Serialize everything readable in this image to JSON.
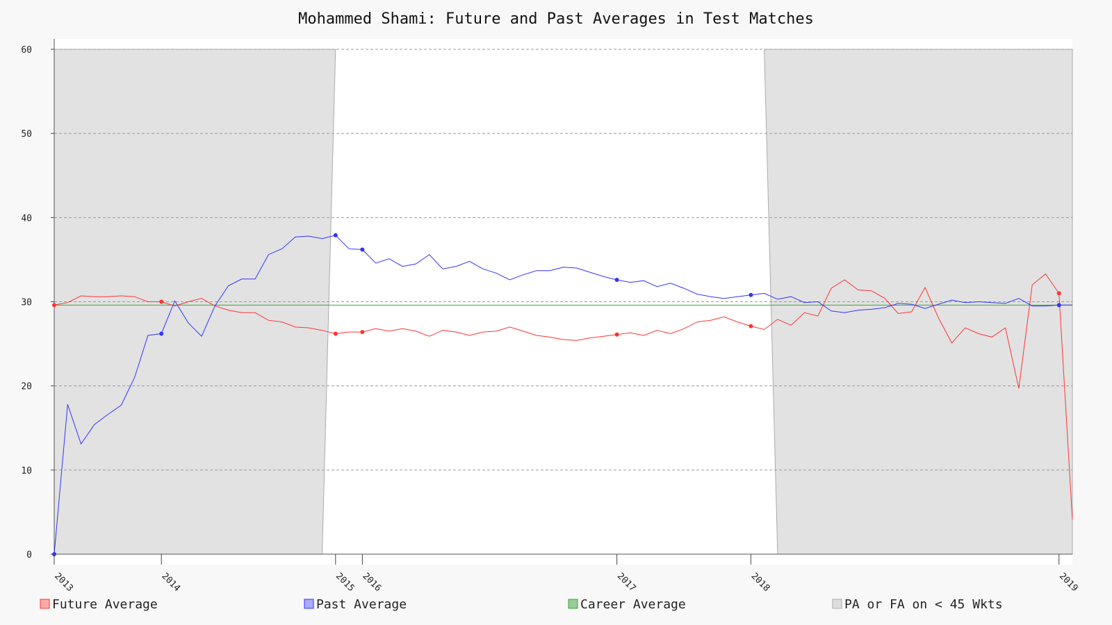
{
  "chart_data": {
    "type": "line",
    "title": "Mohammed Shami: Future and Past Averages in Test Matches",
    "xlabel": "",
    "ylabel": "",
    "ylim": [
      0,
      60
    ],
    "yticks": [
      0,
      10,
      20,
      30,
      40,
      50,
      60
    ],
    "grid": true,
    "legend_position": "bottom",
    "x_ticks": [
      {
        "label": "2013",
        "match": 0
      },
      {
        "label": "2014",
        "match": 8
      },
      {
        "label": "2015",
        "match": 21
      },
      {
        "label": "2016",
        "match": 23
      },
      {
        "label": "2017",
        "match": 42
      },
      {
        "label": "2018",
        "match": 52
      },
      {
        "label": "2019",
        "match": 75
      }
    ],
    "career_average": 29.6,
    "low_wicket_regions": [
      {
        "from": 0,
        "to_bottom": 20,
        "to_top": 21
      },
      {
        "from_bottom": 54,
        "from_top": 53,
        "to": 76
      }
    ],
    "series": [
      {
        "name": "Future Average",
        "color": "#ff3333",
        "marker_indices": [
          0,
          8,
          21,
          23,
          42,
          52,
          75
        ],
        "values": [
          29.6,
          29.9,
          30.7,
          30.6,
          30.6,
          30.7,
          30.6,
          30.0,
          30.0,
          29.5,
          30.0,
          30.4,
          29.5,
          29.0,
          28.7,
          28.7,
          27.8,
          27.6,
          27.0,
          26.9,
          26.6,
          26.2,
          26.4,
          26.4,
          26.8,
          26.5,
          26.8,
          26.5,
          25.9,
          26.6,
          26.4,
          26.0,
          26.4,
          26.5,
          27.0,
          26.5,
          26.0,
          25.8,
          25.5,
          25.4,
          25.7,
          25.9,
          26.1,
          26.3,
          26.0,
          26.6,
          26.2,
          26.8,
          27.6,
          27.8,
          28.2,
          27.6,
          27.1,
          26.7,
          27.9,
          27.2,
          28.7,
          28.3,
          31.6,
          32.6,
          31.4,
          31.3,
          30.4,
          28.6,
          28.8,
          31.7,
          28.1,
          25.1,
          26.9,
          26.2,
          25.8,
          26.9,
          19.7,
          32.0,
          33.3,
          31.0,
          4.1
        ]
      },
      {
        "name": "Past Average",
        "color": "#3333ff",
        "marker_indices": [
          0,
          8,
          21,
          23,
          42,
          52,
          75
        ],
        "values": [
          0.0,
          17.8,
          13.1,
          15.4,
          16.6,
          17.7,
          21.0,
          26.0,
          26.2,
          30.1,
          27.5,
          25.9,
          29.5,
          31.9,
          32.7,
          32.7,
          35.6,
          36.3,
          37.7,
          37.8,
          37.5,
          37.9,
          36.3,
          36.2,
          34.6,
          35.1,
          34.2,
          34.5,
          35.6,
          33.9,
          34.2,
          34.8,
          33.9,
          33.4,
          32.6,
          33.2,
          33.7,
          33.7,
          34.1,
          34.0,
          33.5,
          33.0,
          32.6,
          32.3,
          32.5,
          31.8,
          32.2,
          31.6,
          30.9,
          30.6,
          30.4,
          30.6,
          30.8,
          31.0,
          30.3,
          30.6,
          29.9,
          30.0,
          28.9,
          28.7,
          29.0,
          29.1,
          29.3,
          29.8,
          29.7,
          29.2,
          29.7,
          30.2,
          29.9,
          30.0,
          29.9,
          29.8,
          30.4,
          29.5,
          29.5,
          29.6,
          29.6
        ]
      }
    ]
  },
  "legend": {
    "items": [
      {
        "label": "Future Average",
        "fill": "#ffaaaa",
        "stroke": "#ff3333"
      },
      {
        "label": "Past Average",
        "fill": "#aaaaff",
        "stroke": "#3333ff"
      },
      {
        "label": "Career Average",
        "fill": "#99cc99",
        "stroke": "#33aa33"
      },
      {
        "label": "PA or FA on < 45 Wkts",
        "fill": "#dddddd",
        "stroke": "#aaaaaa"
      }
    ]
  },
  "colors": {
    "plot_background": "#ffffff",
    "page_background": "#f8f8f8",
    "shade": "#e2e2e2",
    "grid": "#999999",
    "career": "#33aa33"
  }
}
